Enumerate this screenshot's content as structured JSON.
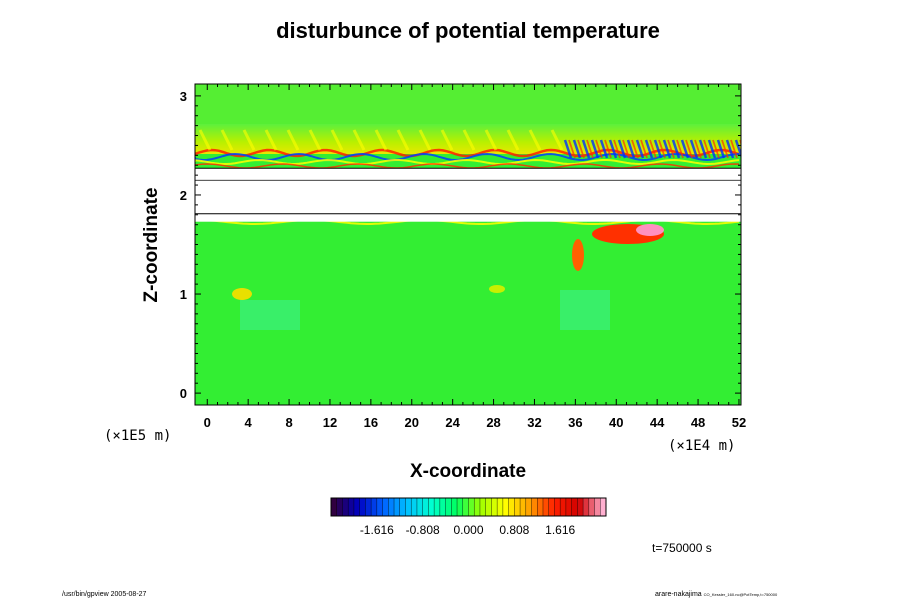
{
  "chart_data": {
    "type": "heatmap",
    "title": "disturbunce of potential temperature",
    "xlabel": "X-coordinate",
    "ylabel": "Z-coordinate",
    "x_unit": "(×1E4 m)",
    "y_unit": "(×1E5 m)",
    "x_ticks": [
      "0",
      "4",
      "8",
      "12",
      "16",
      "20",
      "24",
      "28",
      "32",
      "36",
      "40",
      "44",
      "48",
      "52"
    ],
    "y_ticks": [
      "0",
      "1",
      "2",
      "3"
    ],
    "xlim": [
      -1.2,
      52.2
    ],
    "ylim": [
      -0.12,
      3.12
    ],
    "colorbar_ticks": [
      "-1.616",
      "-0.808",
      "0.000",
      "0.808",
      "1.616"
    ],
    "colorbar_range": [
      -2.424,
      2.424
    ],
    "colormap": [
      "#300040",
      "#0000c0",
      "#0060ff",
      "#00c0ff",
      "#00ffd0",
      "#00ff60",
      "#a0ff00",
      "#ffff00",
      "#ffa000",
      "#ff2000",
      "#d00000",
      "#ffb0d0"
    ],
    "background_color": "#33ee33",
    "blank_band_z": [
      1.73,
      2.3
    ],
    "time_label": "t=750000 s",
    "footer_left": "/usr/bin/gpview 2005-08-27",
    "footer_right": "arare-nakajima",
    "footer_right_small": "CO_Kessler_160.nc@PotTemp,t=750000"
  }
}
